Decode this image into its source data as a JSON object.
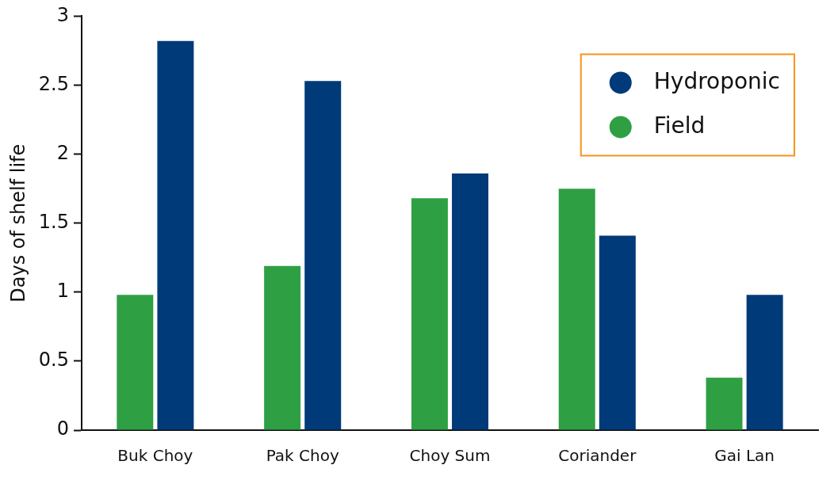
{
  "chart_data": {
    "type": "bar",
    "ylabel": "Days of shelf life",
    "categories": [
      "Buk Choy",
      "Pak Choy",
      "Choy Sum",
      "Coriander",
      "Gai Lan"
    ],
    "series": [
      {
        "name": "Field",
        "color": "#2ea043",
        "values": [
          0.98,
          1.19,
          1.68,
          1.75,
          0.38
        ]
      },
      {
        "name": "Hydroponic",
        "color": "#003a78",
        "values": [
          2.82,
          2.53,
          1.86,
          1.41,
          0.98
        ]
      }
    ],
    "ylim": [
      0,
      3
    ],
    "yticks": [
      0,
      0.5,
      1,
      1.5,
      2,
      2.5,
      3
    ],
    "grid": false,
    "legend": "top right",
    "marker": "circle"
  }
}
